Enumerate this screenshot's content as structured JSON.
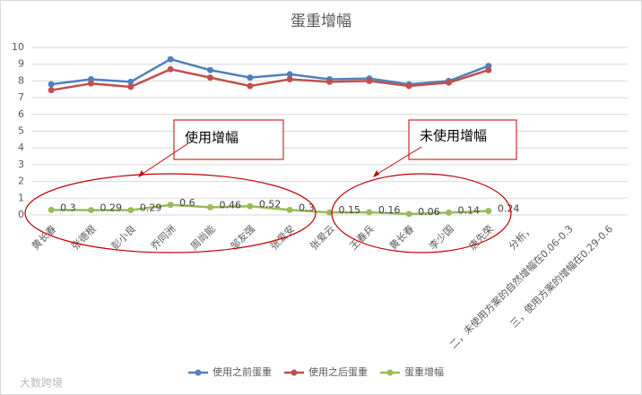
{
  "chart_data": {
    "type": "line",
    "title": "蛋重增幅",
    "categories": [
      "黄长春",
      "张德根",
      "彭小良",
      "乔同洲",
      "周尚能",
      "邹友强",
      "张爱安",
      "张爱云",
      "王春兵",
      "黄长春",
      "李少国",
      "唐先荣",
      "分析，",
      "二，未使用方案的自然增幅在0.06-0.3",
      "三，使用方案的增幅在0.29-0.6"
    ],
    "series": [
      {
        "name": "使用之前蛋重",
        "color": "#4f81bd",
        "values": [
          7.8,
          8.1,
          7.95,
          9.3,
          8.65,
          8.2,
          8.4,
          8.1,
          8.15,
          7.8,
          8.0,
          8.9,
          null,
          null,
          null
        ]
      },
      {
        "name": "使用之后蛋重",
        "color": "#c0504d",
        "values": [
          7.45,
          7.85,
          7.65,
          8.7,
          8.2,
          7.7,
          8.1,
          7.95,
          8.0,
          7.7,
          7.9,
          8.65,
          null,
          null,
          null
        ]
      },
      {
        "name": "蛋重增幅",
        "color": "#9bbb59",
        "values": [
          0.3,
          0.29,
          0.29,
          0.6,
          0.46,
          0.52,
          0.3,
          0.15,
          0.16,
          0.06,
          0.14,
          0.24,
          null,
          null,
          null
        ]
      }
    ],
    "label_series": 2,
    "ylim": [
      0,
      10
    ],
    "yticks": [
      0,
      1,
      2,
      3,
      4,
      5,
      6,
      7,
      8,
      9,
      10
    ],
    "grid": true,
    "annotations": [
      "使用增幅",
      "未使用增幅"
    ],
    "watermark": "大数跨境"
  }
}
